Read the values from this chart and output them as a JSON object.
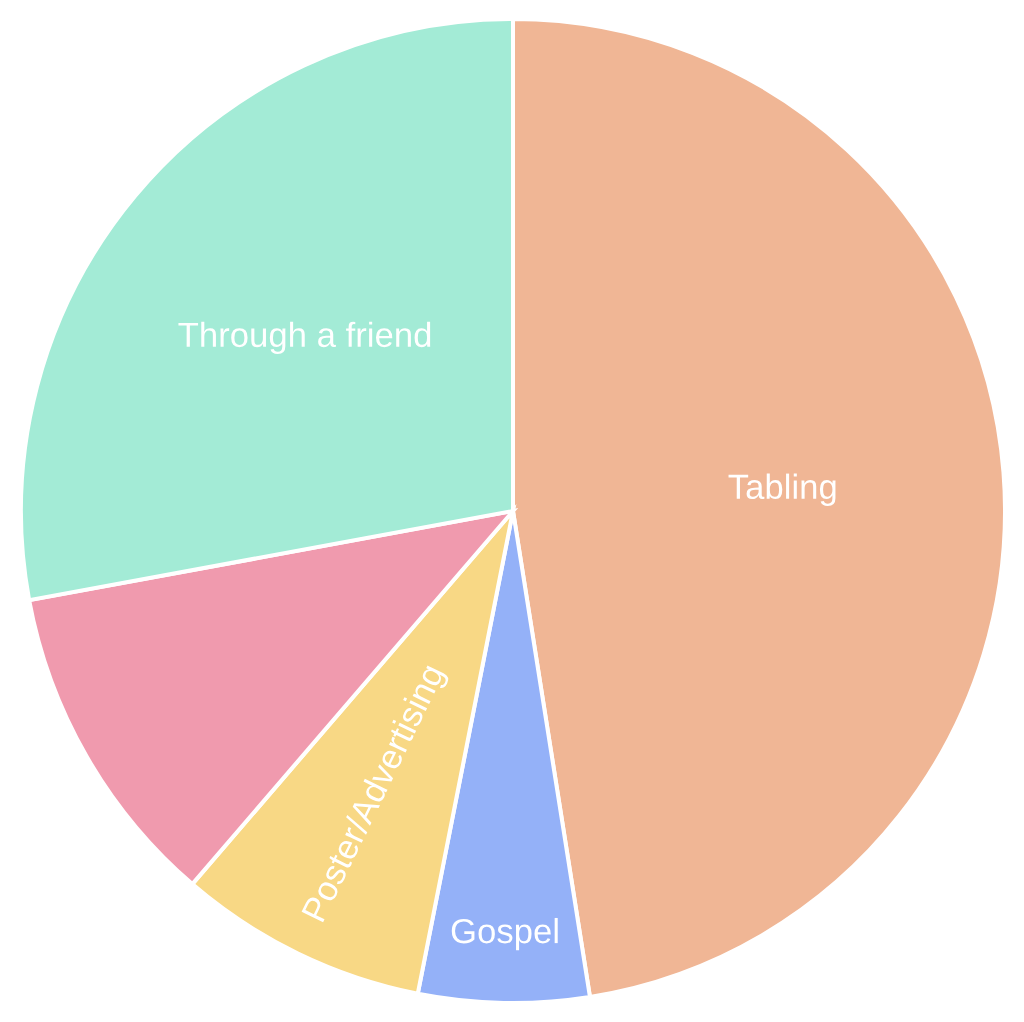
{
  "chart_data": {
    "type": "pie",
    "categories": [
      "Tabling",
      "Gospel",
      "Poster/Advertising",
      null,
      "Through a friend"
    ],
    "values": [
      47.5,
      5.6,
      8.2,
      10.8,
      27.9
    ],
    "colors": [
      "#f0b695",
      "#94b1f8",
      "#f8d885",
      "#f09aae",
      "#a3ebd6"
    ]
  }
}
